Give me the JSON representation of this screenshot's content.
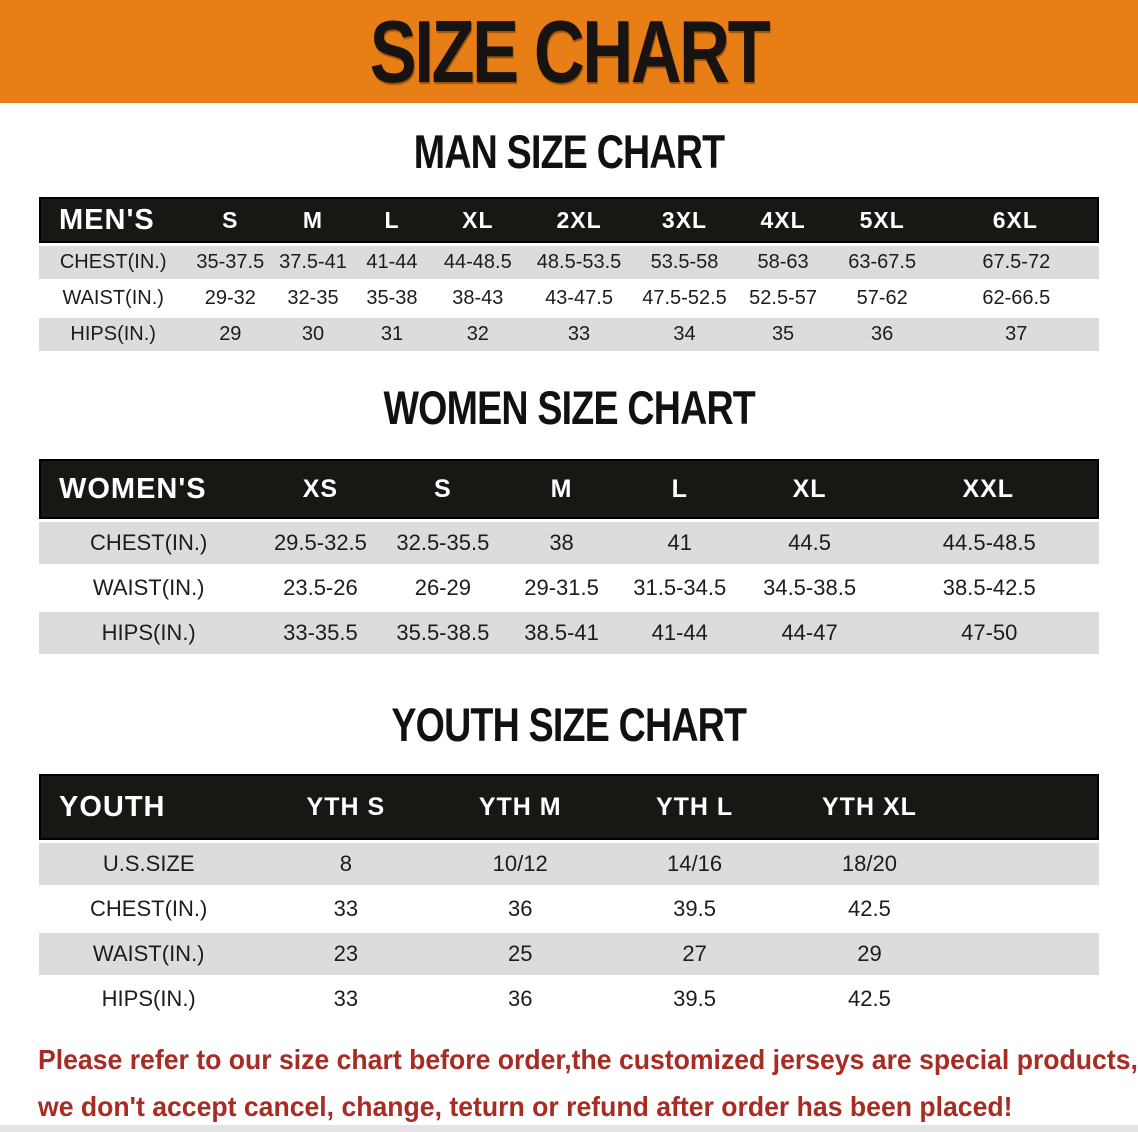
{
  "banner": {
    "title": "SIZE CHART"
  },
  "sections": [
    {
      "heading": "MAN SIZE CHART",
      "label": "MEN'S",
      "columns": [
        "S",
        "M",
        "L",
        "XL",
        "2XL",
        "3XL",
        "4XL",
        "5XL",
        "6XL"
      ],
      "rows": [
        {
          "label": "CHEST(IN.)",
          "values": [
            "35-37.5",
            "37.5-41",
            "41-44",
            "44-48.5",
            "48.5-53.5",
            "53.5-58",
            "58-63",
            "63-67.5",
            "67.5-72"
          ]
        },
        {
          "label": "WAIST(IN.)",
          "values": [
            "29-32",
            "32-35",
            "35-38",
            "38-43",
            "43-47.5",
            "47.5-52.5",
            "52.5-57",
            "57-62",
            "62-66.5"
          ]
        },
        {
          "label": "HIPS(IN.)",
          "values": [
            "29",
            "30",
            "31",
            "32",
            "33",
            "34",
            "35",
            "36",
            "37"
          ]
        }
      ]
    },
    {
      "heading": "WOMEN SIZE CHART",
      "label": "WOMEN'S",
      "columns": [
        "XS",
        "S",
        "M",
        "L",
        "XL",
        "XXL"
      ],
      "rows": [
        {
          "label": "CHEST(IN.)",
          "values": [
            "29.5-32.5",
            "32.5-35.5",
            "38",
            "41",
            "44.5",
            "44.5-48.5"
          ]
        },
        {
          "label": "WAIST(IN.)",
          "values": [
            "23.5-26",
            "26-29",
            "29-31.5",
            "31.5-34.5",
            "34.5-38.5",
            "38.5-42.5"
          ]
        },
        {
          "label": "HIPS(IN.)",
          "values": [
            "33-35.5",
            "35.5-38.5",
            "38.5-41",
            "41-44",
            "44-47",
            "47-50"
          ]
        }
      ]
    },
    {
      "heading": "YOUTH SIZE CHART",
      "label": "YOUTH",
      "columns": [
        "YTH S",
        "YTH M",
        "YTH L",
        "YTH XL"
      ],
      "rows": [
        {
          "label": "U.S.SIZE",
          "values": [
            "8",
            "10/12",
            "14/16",
            "18/20"
          ]
        },
        {
          "label": "CHEST(IN.)",
          "values": [
            "33",
            "36",
            "39.5",
            "42.5"
          ]
        },
        {
          "label": "WAIST(IN.)",
          "values": [
            "23",
            "25",
            "27",
            "29"
          ]
        },
        {
          "label": "HIPS(IN.)",
          "values": [
            "33",
            "36",
            "39.5",
            "42.5"
          ]
        }
      ]
    }
  ],
  "footer": {
    "line1": "Please refer to our size chart before order,the customized jerseys are special products,",
    "line2": "we don't accept cancel, change, teturn or refund after order has been placed!"
  },
  "colors": {
    "banner-bg": "#E87E16",
    "banner-text": "#161310",
    "header-bar-bg": "#171714",
    "header-bar-text": "#ffffff",
    "row-shade": "#dcdcdc",
    "row-white": "#ffffff",
    "heading-text": "#111111",
    "notice-text": "#A62C24"
  }
}
